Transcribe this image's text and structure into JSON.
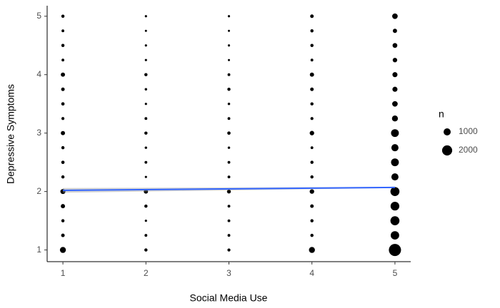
{
  "chart_data": {
    "type": "scatter",
    "x_label": "Social Media Use",
    "y_label": "Depressive Symptoms",
    "xlim": [
      0.81,
      5.19
    ],
    "ylim": [
      0.8,
      5.18
    ],
    "xticks": [
      1,
      2,
      3,
      4,
      5
    ],
    "yticks": [
      1,
      2,
      3,
      4,
      5
    ],
    "grid": false,
    "color": "#000000",
    "points": {
      "x": [
        1,
        1,
        1,
        1,
        1,
        1,
        1,
        1,
        1,
        1,
        1,
        1,
        1,
        1,
        1,
        1,
        1,
        2,
        2,
        2,
        2,
        2,
        2,
        2,
        2,
        2,
        2,
        2,
        2,
        2,
        2,
        2,
        2,
        2,
        3,
        3,
        3,
        3,
        3,
        3,
        3,
        3,
        3,
        3,
        3,
        3,
        3,
        3,
        3,
        3,
        3,
        4,
        4,
        4,
        4,
        4,
        4,
        4,
        4,
        4,
        4,
        4,
        4,
        4,
        4,
        4,
        4,
        4,
        5,
        5,
        5,
        5,
        5,
        5,
        5,
        5,
        5,
        5,
        5,
        5,
        5,
        5,
        5,
        5,
        5
      ],
      "y": [
        1,
        1.25,
        1.5,
        1.75,
        2,
        2.25,
        2.5,
        2.75,
        3,
        3.25,
        3.5,
        3.75,
        4,
        4.25,
        4.5,
        4.75,
        5,
        1,
        1.25,
        1.5,
        1.75,
        2,
        2.25,
        2.5,
        2.75,
        3,
        3.25,
        3.5,
        3.75,
        4,
        4.25,
        4.5,
        4.75,
        5,
        1,
        1.25,
        1.5,
        1.75,
        2,
        2.25,
        2.5,
        2.75,
        3,
        3.25,
        3.5,
        3.75,
        4,
        4.25,
        4.5,
        4.75,
        5,
        1,
        1.25,
        1.5,
        1.75,
        2,
        2.25,
        2.5,
        2.75,
        3,
        3.25,
        3.5,
        3.75,
        4,
        4.25,
        4.5,
        4.75,
        5,
        1,
        1.25,
        1.5,
        1.75,
        2,
        2.25,
        2.5,
        2.75,
        3,
        3.25,
        3.5,
        3.75,
        4,
        4.25,
        4.5,
        4.75,
        5
      ],
      "n": [
        700,
        250,
        200,
        350,
        500,
        200,
        220,
        200,
        350,
        180,
        220,
        250,
        350,
        150,
        200,
        150,
        200,
        200,
        150,
        100,
        200,
        350,
        100,
        150,
        120,
        200,
        150,
        100,
        120,
        200,
        100,
        100,
        90,
        100,
        180,
        150,
        150,
        150,
        300,
        150,
        150,
        120,
        220,
        150,
        120,
        200,
        150,
        90,
        100,
        90,
        100,
        700,
        200,
        200,
        250,
        400,
        200,
        200,
        150,
        400,
        180,
        200,
        250,
        350,
        150,
        200,
        200,
        250,
        2900,
        1400,
        1600,
        1500,
        1600,
        1000,
        1200,
        1000,
        1200,
        700,
        600,
        500,
        500,
        400,
        450,
        350,
        600
      ]
    },
    "fit": {
      "color": "#3366FF",
      "band_color": "#999999",
      "x": [
        1,
        5
      ],
      "y": [
        2.02,
        2.07
      ],
      "ci_low": [
        1.98,
        2.06
      ],
      "ci_high": [
        2.06,
        2.08
      ]
    },
    "size_legend": {
      "title": "n",
      "values": [
        1000,
        2000
      ]
    }
  }
}
